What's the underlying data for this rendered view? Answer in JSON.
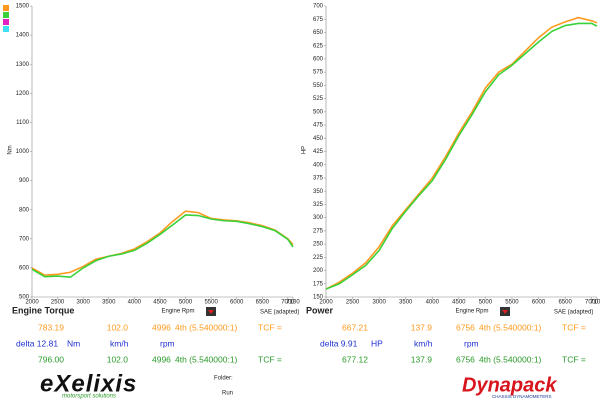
{
  "chart_data": [
    {
      "type": "line",
      "title": "Engine Torque",
      "xlabel": "Engine Rpm",
      "ylabel": "Nm",
      "note": "SAE (adapted)",
      "x": [
        2000,
        2250,
        2500,
        2750,
        3000,
        3250,
        3500,
        3750,
        4000,
        4250,
        4500,
        4750,
        5000,
        5250,
        5500,
        5750,
        6000,
        6250,
        6500,
        6750,
        7000,
        7100
      ],
      "series": [
        {
          "color": "#ff9a1e",
          "values": [
            600,
            575,
            578,
            585,
            605,
            630,
            640,
            650,
            665,
            690,
            720,
            760,
            795,
            790,
            770,
            765,
            762,
            755,
            745,
            730,
            700,
            680
          ]
        },
        {
          "color": "#3ad13a",
          "values": [
            595,
            570,
            572,
            568,
            600,
            625,
            640,
            648,
            660,
            685,
            715,
            748,
            782,
            780,
            768,
            762,
            760,
            752,
            742,
            728,
            698,
            672
          ]
        }
      ],
      "xlim": [
        2000,
        7100
      ],
      "xticks": [
        2000,
        2500,
        3000,
        3500,
        4000,
        4500,
        5000,
        5500,
        6000,
        6500,
        7000,
        7100
      ],
      "ylim": [
        500,
        1500
      ],
      "yticks": [
        500,
        600,
        700,
        800,
        900,
        1000,
        1100,
        1200,
        1300,
        1400,
        1500
      ],
      "grid": false
    },
    {
      "type": "line",
      "title": "Power",
      "xlabel": "Engine Rpm",
      "ylabel": "HP",
      "note": "SAE (adapted)",
      "x": [
        2000,
        2250,
        2500,
        2750,
        3000,
        3250,
        3500,
        3750,
        4000,
        4250,
        4500,
        4750,
        5000,
        5250,
        5500,
        5750,
        6000,
        6250,
        6500,
        6750,
        7000,
        7100
      ],
      "series": [
        {
          "color": "#ff9a1e",
          "values": [
            165,
            178,
            195,
            215,
            245,
            285,
            315,
            345,
            375,
            415,
            460,
            500,
            545,
            575,
            590,
            615,
            640,
            660,
            670,
            678,
            672,
            668
          ]
        },
        {
          "color": "#3ad13a",
          "values": [
            165,
            175,
            192,
            210,
            238,
            280,
            312,
            342,
            370,
            410,
            455,
            495,
            538,
            570,
            588,
            610,
            632,
            652,
            663,
            667,
            667,
            662
          ]
        }
      ],
      "xlim": [
        2000,
        7100
      ],
      "xticks": [
        2000,
        2500,
        3000,
        3500,
        4000,
        4500,
        5000,
        5500,
        6000,
        6500,
        7000,
        7100
      ],
      "ylim": [
        150,
        700
      ],
      "yticks": [
        150,
        175,
        200,
        225,
        250,
        275,
        300,
        325,
        350,
        375,
        400,
        425,
        450,
        475,
        500,
        525,
        550,
        575,
        600,
        625,
        650,
        675,
        700
      ],
      "grid": false
    }
  ],
  "readouts": [
    [
      [
        "783.19",
        "102.0",
        "4996",
        "4th (5.540000:1)",
        "TCF ="
      ],
      [
        "delta 12.81",
        "Nm",
        "km/h",
        "rpm"
      ],
      [
        "796.00",
        "102.0",
        "4996",
        "4th (5.540000:1)",
        "TCF ="
      ]
    ],
    [
      [
        "667.21",
        "137.9",
        "6756",
        "4th (5.540000:1)",
        "TCF ="
      ],
      [
        "delta 9.91",
        "HP",
        "km/h",
        "rpm"
      ],
      [
        "677.12",
        "137.9",
        "6756",
        "4th (5.540000:1)",
        "TCF ="
      ]
    ]
  ],
  "footer": {
    "logo": "eXelixis",
    "tagline": "motorsport solutions",
    "folder": "Folder:",
    "run": "Run",
    "brand": "Dynapack",
    "brand_tagline": "CHASSIS DYNAMOMETERS"
  }
}
